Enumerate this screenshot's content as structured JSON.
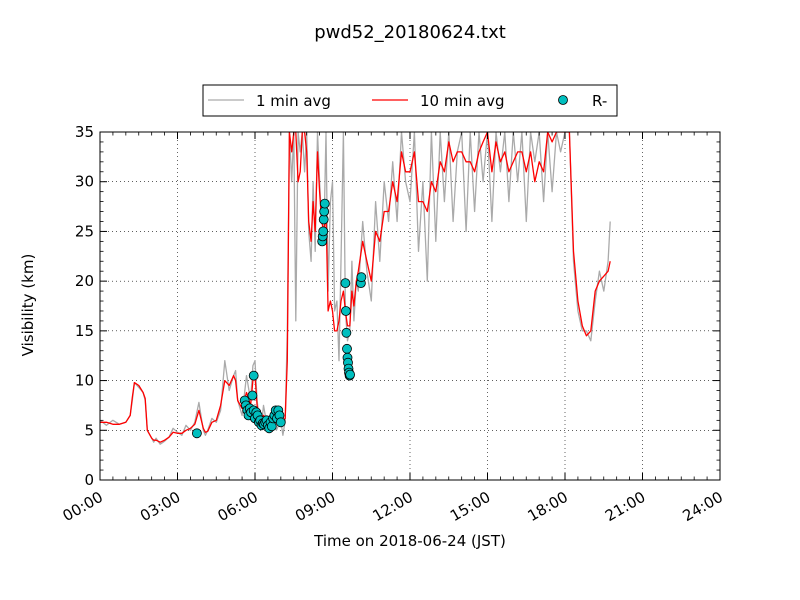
{
  "chart_data": {
    "type": "line",
    "title": "pwd52_20180624.txt",
    "xlabel": "Time on 2018-06-24 (JST)",
    "ylabel": "Visibility (km)",
    "xlim": [
      "00:00",
      "24:00"
    ],
    "ylim": [
      0,
      35
    ],
    "x_ticks": [
      "00:00",
      "03:00",
      "06:00",
      "09:00",
      "12:00",
      "15:00",
      "18:00",
      "21:00",
      "24:00"
    ],
    "y_ticks": [
      0,
      5,
      10,
      15,
      20,
      25,
      30,
      35
    ],
    "grid": true,
    "legend_position": "top-center-outside",
    "colors": {
      "one_min": "#aaaaaa",
      "ten_min": "#ff0000",
      "rain": "#00bfbf"
    },
    "series": [
      {
        "name": "1 min avg",
        "kind": "line",
        "x_hours": [
          0.0,
          0.25,
          0.5,
          0.75,
          1.0,
          1.17,
          1.25,
          1.33,
          1.5,
          1.67,
          1.75,
          1.83,
          2.0,
          2.08,
          2.17,
          2.33,
          2.5,
          2.67,
          2.83,
          3.0,
          3.17,
          3.33,
          3.5,
          3.67,
          3.83,
          4.0,
          4.08,
          4.17,
          4.33,
          4.5,
          4.67,
          4.83,
          5.0,
          5.17,
          5.25,
          5.33,
          5.5,
          5.67,
          5.83,
          5.92,
          6.0,
          6.08,
          6.17,
          6.25,
          6.33,
          6.5,
          6.67,
          6.83,
          7.0,
          7.08,
          7.17,
          7.25,
          7.33,
          7.42,
          7.5,
          7.58,
          7.67,
          7.75,
          7.83,
          7.92,
          8.0,
          8.08,
          8.17,
          8.25,
          8.33,
          8.42,
          8.5,
          8.58,
          8.67,
          8.75,
          8.83,
          8.92,
          9.0,
          9.08,
          9.17,
          9.25,
          9.33,
          9.42,
          9.5,
          9.58,
          9.67,
          9.75,
          9.83,
          9.92,
          10.0,
          10.17,
          10.33,
          10.5,
          10.67,
          10.83,
          11.0,
          11.17,
          11.33,
          11.5,
          11.67,
          11.83,
          12.0,
          12.17,
          12.33,
          12.5,
          12.67,
          12.83,
          13.0,
          13.17,
          13.33,
          13.5,
          13.67,
          13.83,
          14.0,
          14.17,
          14.33,
          14.5,
          14.67,
          14.83,
          15.0,
          15.17,
          15.33,
          15.5,
          15.67,
          15.83,
          16.0,
          16.17,
          16.33,
          16.5,
          16.67,
          16.83,
          17.0,
          17.17,
          17.33,
          17.5,
          17.67,
          17.83,
          18.0,
          18.17,
          18.33,
          18.5,
          18.67,
          18.83,
          19.0,
          19.17,
          19.33,
          19.5,
          19.67,
          19.75
        ],
        "values": [
          6.0,
          5.5,
          6.0,
          5.6,
          5.8,
          6.5,
          8.0,
          9.8,
          9.3,
          8.8,
          8.0,
          5.0,
          4.2,
          3.8,
          4.2,
          3.6,
          3.9,
          4.3,
          5.2,
          4.8,
          4.5,
          5.5,
          5.0,
          5.8,
          7.8,
          5.0,
          4.5,
          5.0,
          6.2,
          5.8,
          7.0,
          12.0,
          9.0,
          10.5,
          11.0,
          8.0,
          6.5,
          10.5,
          8.0,
          11.5,
          12.0,
          8.0,
          6.0,
          5.5,
          7.5,
          5.0,
          7.0,
          5.0,
          6.0,
          4.5,
          6.0,
          15.0,
          35.0,
          30.0,
          35.0,
          16.0,
          35.0,
          33.0,
          35.0,
          31.0,
          35.0,
          25.0,
          22.0,
          30.0,
          23.0,
          35.0,
          30.0,
          26.0,
          25.0,
          35.0,
          19.0,
          28.0,
          30.0,
          17.0,
          18.0,
          12.0,
          22.0,
          35.0,
          17.0,
          14.0,
          15.0,
          22.0,
          16.0,
          20.0,
          19.0,
          26.0,
          21.0,
          18.0,
          28.0,
          22.0,
          30.0,
          26.0,
          32.0,
          26.0,
          35.0,
          30.0,
          28.0,
          35.0,
          23.0,
          30.0,
          20.0,
          35.0,
          24.0,
          35.0,
          28.0,
          35.0,
          26.0,
          33.0,
          35.0,
          25.0,
          35.0,
          27.0,
          35.0,
          30.0,
          35.0,
          26.0,
          35.0,
          31.0,
          35.0,
          28.0,
          35.0,
          30.0,
          35.0,
          26.0,
          35.0,
          32.0,
          35.0,
          28.0,
          35.0,
          29.0,
          35.0,
          33.0,
          35.0,
          35.0,
          22.0,
          17.0,
          15.0,
          15.0,
          14.0,
          18.0,
          21.0,
          19.0,
          22.0,
          26.0
        ],
        "note_max_clipped_at_ylim": true
      },
      {
        "name": "10 min avg",
        "kind": "line",
        "x_hours": [
          0.0,
          0.25,
          0.5,
          0.75,
          1.0,
          1.17,
          1.25,
          1.33,
          1.5,
          1.67,
          1.75,
          1.83,
          2.0,
          2.08,
          2.17,
          2.33,
          2.5,
          2.67,
          2.83,
          3.0,
          3.17,
          3.33,
          3.5,
          3.67,
          3.83,
          4.0,
          4.08,
          4.17,
          4.33,
          4.5,
          4.67,
          4.83,
          5.0,
          5.17,
          5.25,
          5.33,
          5.5,
          5.67,
          5.83,
          5.92,
          6.0,
          6.08,
          6.17,
          6.25,
          6.33,
          6.5,
          6.67,
          6.83,
          7.0,
          7.08,
          7.17,
          7.25,
          7.33,
          7.42,
          7.5,
          7.58,
          7.67,
          7.75,
          7.83,
          7.92,
          8.0,
          8.08,
          8.17,
          8.25,
          8.33,
          8.42,
          8.5,
          8.58,
          8.67,
          8.75,
          8.83,
          8.92,
          9.0,
          9.08,
          9.17,
          9.25,
          9.33,
          9.42,
          9.5,
          9.58,
          9.67,
          9.75,
          9.83,
          9.92,
          10.0,
          10.17,
          10.33,
          10.5,
          10.67,
          10.83,
          11.0,
          11.17,
          11.33,
          11.5,
          11.67,
          11.83,
          12.0,
          12.17,
          12.33,
          12.5,
          12.67,
          12.83,
          13.0,
          13.17,
          13.33,
          13.5,
          13.67,
          13.83,
          14.0,
          14.17,
          14.33,
          14.5,
          14.67,
          14.83,
          15.0,
          15.17,
          15.33,
          15.5,
          15.67,
          15.83,
          16.0,
          16.17,
          16.33,
          16.5,
          16.67,
          16.83,
          17.0,
          17.17,
          17.33,
          17.5,
          17.67,
          17.83,
          18.0,
          18.17,
          18.33,
          18.5,
          18.67,
          18.83,
          19.0,
          19.17,
          19.33,
          19.5,
          19.67,
          19.75
        ],
        "values": [
          5.8,
          5.8,
          5.6,
          5.6,
          5.8,
          6.5,
          8.3,
          9.8,
          9.5,
          8.8,
          8.2,
          5.0,
          4.2,
          4.0,
          4.0,
          3.8,
          4.0,
          4.3,
          4.8,
          4.7,
          4.7,
          5.0,
          5.2,
          5.6,
          7.0,
          5.2,
          4.8,
          4.9,
          5.8,
          6.0,
          7.5,
          10.0,
          9.5,
          10.5,
          10.0,
          8.0,
          7.2,
          8.8,
          7.5,
          10.0,
          10.5,
          7.5,
          6.5,
          6.0,
          6.5,
          5.8,
          6.5,
          5.8,
          6.0,
          6.0,
          6.2,
          12.0,
          35.0,
          33.0,
          35.0,
          35.0,
          30.0,
          31.0,
          35.0,
          35.0,
          33.0,
          26.0,
          24.0,
          28.0,
          25.0,
          33.0,
          29.0,
          26.0,
          25.0,
          27.0,
          17.0,
          18.0,
          17.0,
          15.0,
          15.0,
          16.0,
          18.0,
          19.0,
          17.0,
          15.5,
          15.5,
          19.0,
          17.5,
          20.0,
          21.0,
          24.0,
          22.0,
          20.0,
          25.0,
          24.0,
          27.0,
          27.0,
          30.0,
          28.0,
          33.0,
          31.0,
          31.0,
          33.0,
          28.0,
          28.0,
          27.0,
          30.0,
          29.0,
          32.0,
          31.0,
          34.0,
          32.0,
          33.0,
          33.0,
          32.0,
          32.0,
          31.0,
          33.0,
          34.0,
          35.0,
          31.0,
          34.0,
          32.0,
          33.0,
          31.0,
          32.0,
          33.0,
          33.0,
          31.0,
          33.0,
          30.0,
          32.0,
          31.0,
          35.0,
          34.0,
          35.0,
          35.0,
          35.0,
          35.0,
          23.0,
          18.0,
          15.5,
          14.5,
          15.0,
          19.0,
          20.0,
          20.5,
          21.0,
          22.0
        ]
      },
      {
        "name": "R-",
        "kind": "scatter",
        "x_hours": [
          3.75,
          5.6,
          5.65,
          5.7,
          5.75,
          5.8,
          5.85,
          5.9,
          5.95,
          6.0,
          6.05,
          6.1,
          6.15,
          6.2,
          6.25,
          6.3,
          6.35,
          6.4,
          6.45,
          6.5,
          6.55,
          6.6,
          6.65,
          6.7,
          6.75,
          6.8,
          6.85,
          6.9,
          6.95,
          7.0,
          5.95,
          8.6,
          8.62,
          8.64,
          8.66,
          8.68,
          8.7,
          9.5,
          9.52,
          9.54,
          9.56,
          9.58,
          9.6,
          9.62,
          9.64,
          9.66,
          9.68,
          10.1,
          10.12
        ],
        "values": [
          4.7,
          8.0,
          7.5,
          7.0,
          6.5,
          7.2,
          6.8,
          8.5,
          7.0,
          6.2,
          6.8,
          6.5,
          5.8,
          6.0,
          5.5,
          5.7,
          5.6,
          5.8,
          6.0,
          5.5,
          5.2,
          5.8,
          5.4,
          6.2,
          6.5,
          7.0,
          6.2,
          7.0,
          6.5,
          5.8,
          10.5,
          24.0,
          24.5,
          25.0,
          26.2,
          27.0,
          27.8,
          19.8,
          17.0,
          14.8,
          13.2,
          12.3,
          11.8,
          11.2,
          10.8,
          10.5,
          10.6,
          19.8,
          20.4
        ]
      }
    ]
  }
}
